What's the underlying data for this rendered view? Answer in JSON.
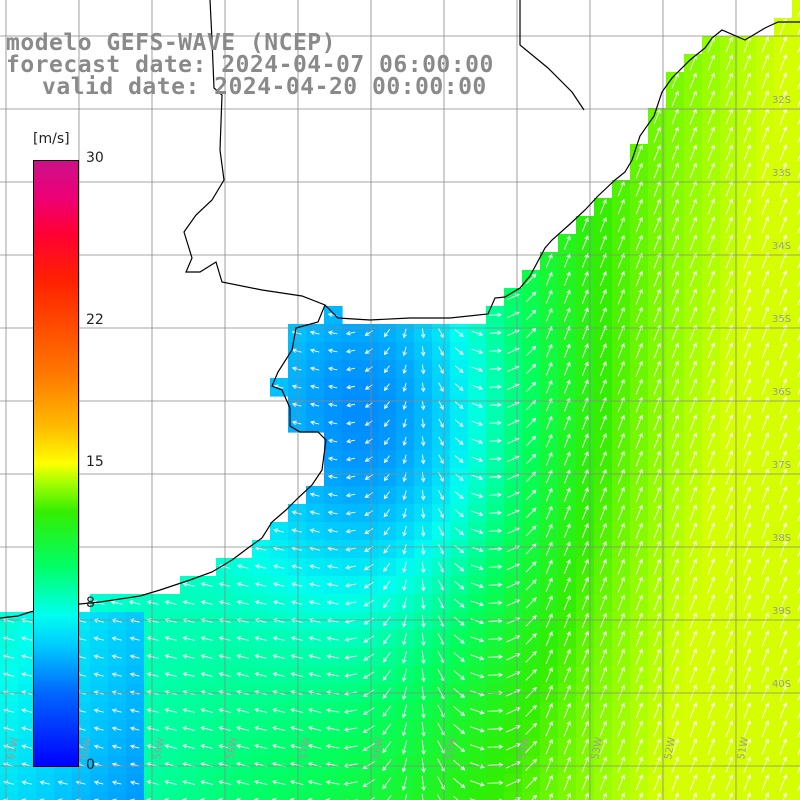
{
  "header": {
    "line1": "modelo GEFS-WAVE (NCEP)",
    "line2": "forecast date: 2024-04-07 06:00:00",
    "line3": "valid date: 2024-04-20 00:00:00"
  },
  "colorbar": {
    "unit": "[m/s]",
    "ticks": [
      {
        "value": 30,
        "label": "30"
      },
      {
        "value": 22,
        "label": "22"
      },
      {
        "value": 15,
        "label": "15"
      },
      {
        "value": 8,
        "label": "8"
      },
      {
        "value": 0,
        "label": "0"
      }
    ]
  },
  "map": {
    "lon_labels": [
      "61W",
      "60W",
      "59W",
      "58W",
      "57W",
      "56W",
      "55W",
      "54W",
      "53W",
      "52W",
      "51W"
    ],
    "lat_labels": [
      "32S",
      "33S",
      "34S",
      "35S",
      "36S",
      "37S",
      "38S",
      "39S",
      "40S"
    ],
    "colors": {
      "land": "#ffffff",
      "coast": "#000000",
      "grid": "#888888",
      "arrow": "#ffffff"
    }
  }
}
